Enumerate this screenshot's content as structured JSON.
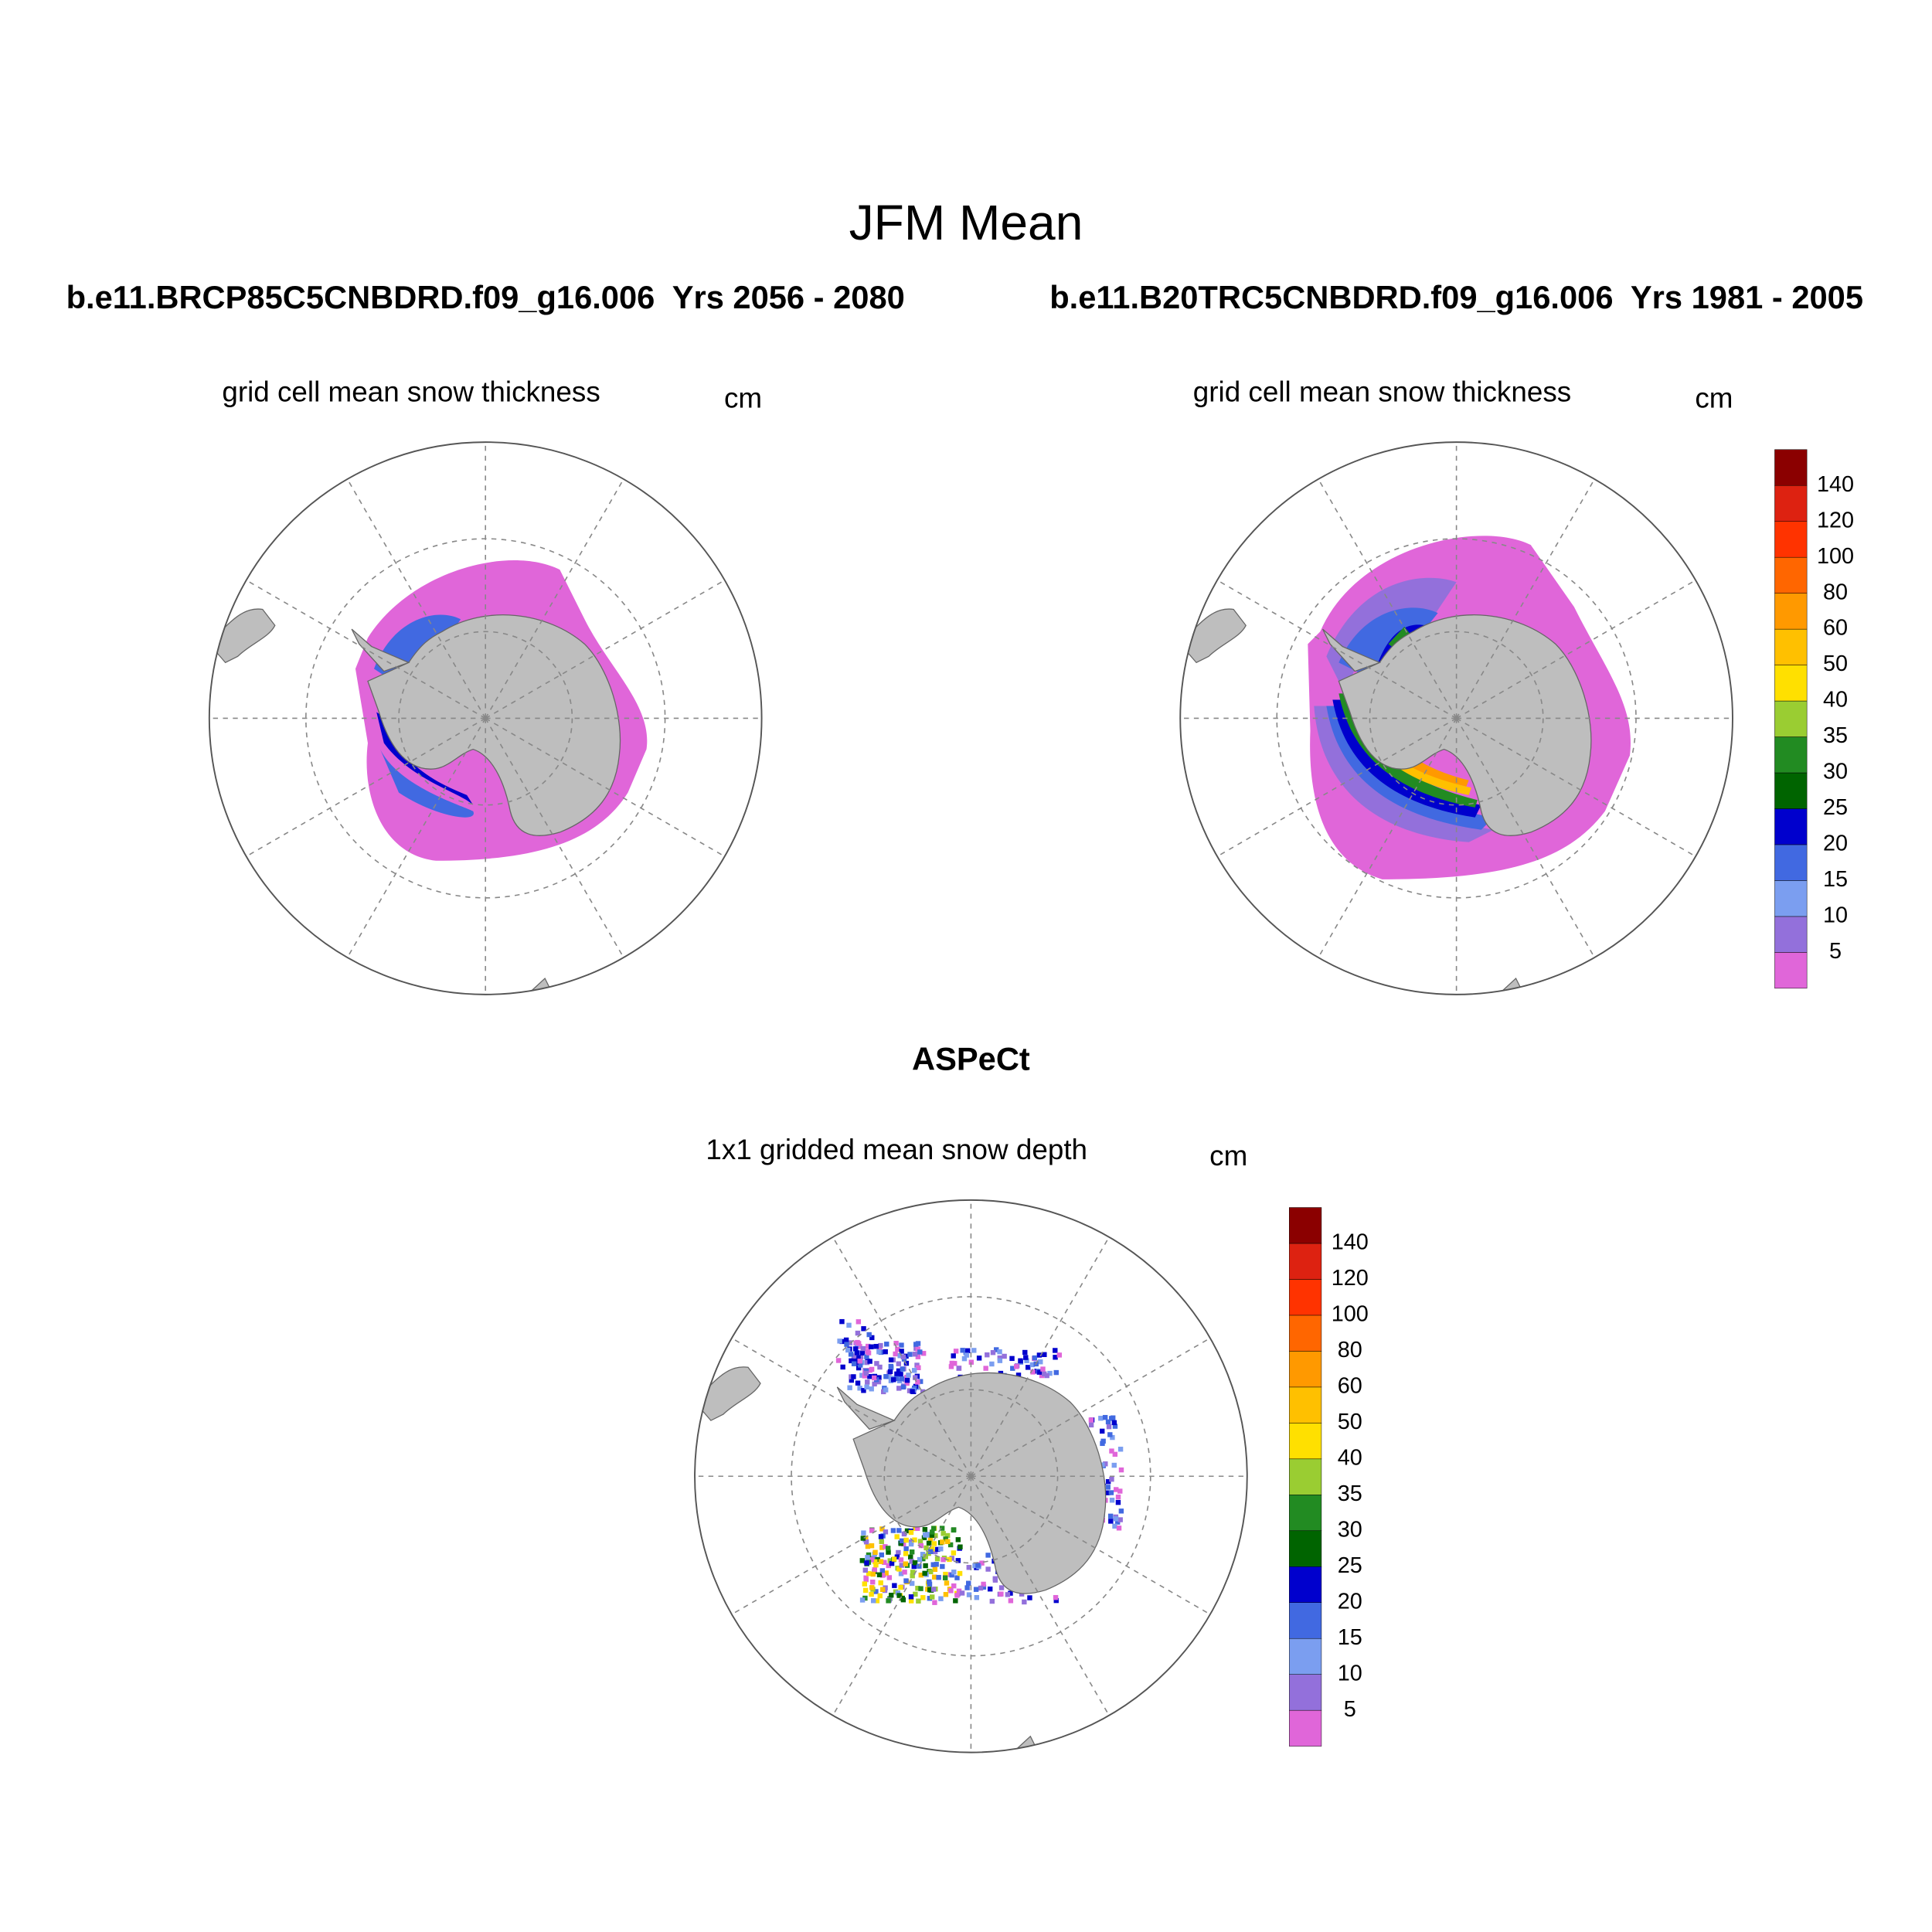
{
  "title": "JFM Mean",
  "panels": [
    {
      "header": "b.e11.BRCP85C5CNBDRD.f09_g16.006  Yrs 2056 - 2080",
      "subtitle": "grid cell mean snow thickness",
      "units": "cm"
    },
    {
      "header": "b.e11.B20TRC5CNBDRD.f09_g16.006  Yrs 1981 - 2005",
      "subtitle": "grid cell mean snow thickness",
      "units": "cm"
    },
    {
      "header": "ASPeCt",
      "subtitle": "1x1 gridded mean snow depth",
      "units": "cm"
    }
  ],
  "colorbar": {
    "levels": [
      5,
      10,
      15,
      20,
      25,
      30,
      35,
      40,
      50,
      60,
      80,
      100,
      120,
      140
    ],
    "colors": [
      "#e066d9",
      "#9370db",
      "#7b9ef0",
      "#4169e1",
      "#0000cd",
      "#006400",
      "#228b22",
      "#9acd32",
      "#ffe000",
      "#ffc000",
      "#ff9900",
      "#ff6600",
      "#ff3300",
      "#dd2211",
      "#8b0000"
    ]
  }
}
